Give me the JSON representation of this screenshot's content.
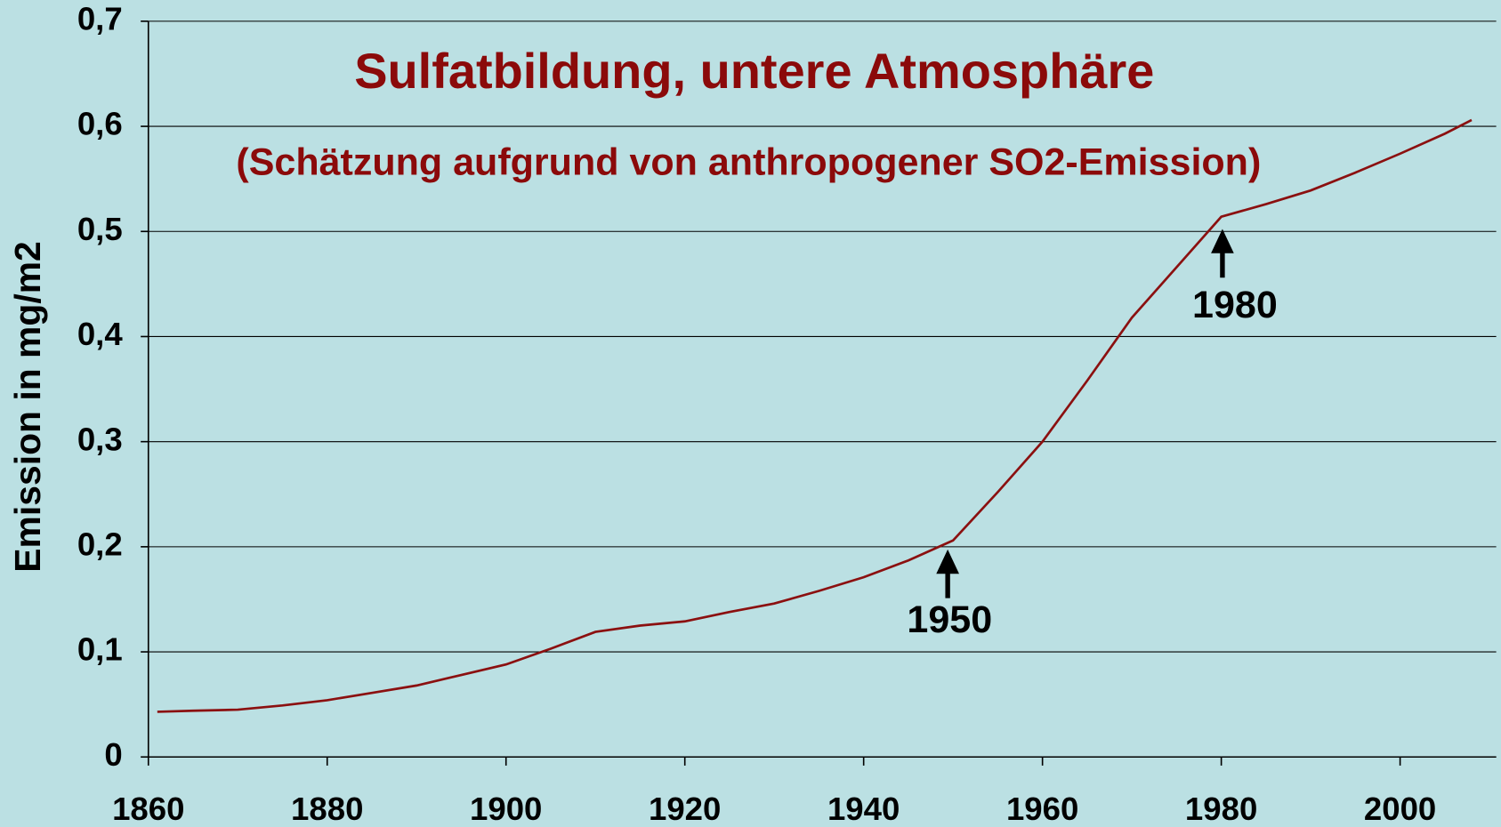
{
  "chart_data": {
    "type": "line",
    "title": "Sulfatbildung, untere Atmosphäre",
    "subtitle": "(Schätzung aufgrund von anthropogener SO2-Emission)",
    "y_label": "Emission in mg/m2",
    "annotations": [
      "1950",
      "1980"
    ],
    "x": [
      1861,
      1865,
      1870,
      1875,
      1880,
      1885,
      1890,
      1895,
      1900,
      1905,
      1910,
      1915,
      1920,
      1925,
      1930,
      1935,
      1940,
      1945,
      1950,
      1955,
      1960,
      1965,
      1970,
      1975,
      1980,
      1985,
      1990,
      1995,
      2000,
      2005,
      2008
    ],
    "series": [
      {
        "name": "Sulfat",
        "color": "#8b1010",
        "values": [
          0.043,
          0.044,
          0.045,
          0.049,
          0.054,
          0.061,
          0.068,
          0.078,
          0.088,
          0.103,
          0.119,
          0.125,
          0.129,
          0.138,
          0.146,
          0.158,
          0.171,
          0.187,
          0.206,
          0.252,
          0.3,
          0.358,
          0.418,
          0.466,
          0.514,
          0.526,
          0.539,
          0.556,
          0.574,
          0.593,
          0.606
        ]
      }
    ],
    "xlim": [
      1860,
      2010
    ],
    "xticks": [
      1860,
      1880,
      1900,
      1920,
      1940,
      1960,
      1980,
      2000
    ],
    "ylim": [
      0,
      0.7
    ],
    "yticks": [
      0,
      {
        "value": 0.1,
        "label": "0,1"
      },
      {
        "value": 0.2,
        "label": "0,2"
      },
      {
        "value": 0.3,
        "label": "0,3"
      },
      {
        "value": 0.4,
        "label": "0,4"
      },
      {
        "value": 0.5,
        "label": "0,5"
      },
      {
        "value": 0.6,
        "label": "0,6"
      },
      {
        "value": 0.7,
        "label": "0,7"
      }
    ],
    "grid": true
  }
}
